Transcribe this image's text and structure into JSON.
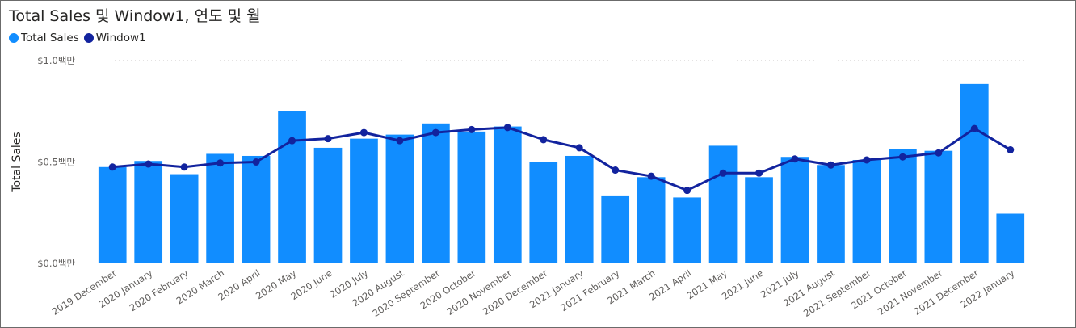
{
  "chart_data": {
    "type": "bar",
    "title": "Total Sales 및 Window1, 연도 및 월",
    "legend": [
      {
        "name": "Total Sales",
        "color": "#118DFF"
      },
      {
        "name": "Window1",
        "color": "#12239E"
      }
    ],
    "ylabel": "Total Sales",
    "ylim": [
      0,
      1.0
    ],
    "yticks": [
      {
        "value": 0.0,
        "label": "$0.0백만"
      },
      {
        "value": 0.5,
        "label": "$0.5백만"
      },
      {
        "value": 1.0,
        "label": "$1.0백만"
      }
    ],
    "grid": true,
    "legend_position": "top-left",
    "categories": [
      "2019 December",
      "2020 January",
      "2020 February",
      "2020 March",
      "2020 April",
      "2020 May",
      "2020 June",
      "2020 July",
      "2020 August",
      "2020 September",
      "2020 October",
      "2020 November",
      "2020 December",
      "2021 January",
      "2021 February",
      "2021 March",
      "2021 April",
      "2021 May",
      "2021 June",
      "2021 July",
      "2021 August",
      "2021 September",
      "2021 October",
      "2021 November",
      "2021 December",
      "2022 January"
    ],
    "series": [
      {
        "name": "Total Sales",
        "type": "bar",
        "color": "#118DFF",
        "values": [
          0.475,
          0.505,
          0.44,
          0.54,
          0.53,
          0.75,
          0.57,
          0.615,
          0.635,
          0.69,
          0.65,
          0.675,
          0.5,
          0.53,
          0.335,
          0.425,
          0.325,
          0.58,
          0.425,
          0.525,
          0.485,
          0.51,
          0.565,
          0.555,
          0.885,
          0.245
        ]
      },
      {
        "name": "Window1",
        "type": "line",
        "color": "#12239E",
        "values": [
          0.475,
          0.49,
          0.475,
          0.495,
          0.5,
          0.605,
          0.615,
          0.645,
          0.605,
          0.645,
          0.66,
          0.67,
          0.61,
          0.57,
          0.46,
          0.43,
          0.36,
          0.445,
          0.445,
          0.515,
          0.485,
          0.51,
          0.525,
          0.545,
          0.665,
          0.56
        ]
      }
    ]
  }
}
